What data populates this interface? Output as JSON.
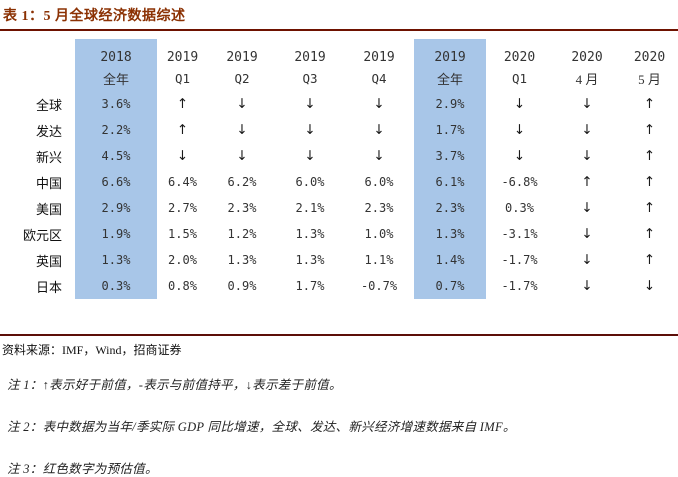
{
  "title": "表 1：5 月全球经济数据综述",
  "colors": {
    "title_text": "#8B3103",
    "rule": "#6E1200",
    "highlight_column": "#A8C6E8",
    "arrow": "#1a1a1a"
  },
  "table": {
    "columns": [
      {
        "year": "2018",
        "period": "全年",
        "highlight": true
      },
      {
        "year": "2019",
        "period": "Q1",
        "highlight": false
      },
      {
        "year": "2019",
        "period": "Q2",
        "highlight": false
      },
      {
        "year": "2019",
        "period": "Q3",
        "highlight": false
      },
      {
        "year": "2019",
        "period": "Q4",
        "highlight": false
      },
      {
        "year": "2019",
        "period": "全年",
        "highlight": true
      },
      {
        "year": "2020",
        "period": "Q1",
        "highlight": false
      },
      {
        "year": "2020",
        "period": "4 月",
        "highlight": false
      },
      {
        "year": "2020",
        "period": "5 月",
        "highlight": false
      }
    ],
    "rows": [
      {
        "label": "全球",
        "values": [
          "3.6%",
          "↑",
          "↓",
          "↓",
          "↓",
          "2.9%",
          "↓",
          "↓",
          "↑"
        ]
      },
      {
        "label": "发达",
        "values": [
          "2.2%",
          "↑",
          "↓",
          "↓",
          "↓",
          "1.7%",
          "↓",
          "↓",
          "↑"
        ]
      },
      {
        "label": "新兴",
        "values": [
          "4.5%",
          "↓",
          "↓",
          "↓",
          "↓",
          "3.7%",
          "↓",
          "↓",
          "↑"
        ]
      },
      {
        "label": "中国",
        "values": [
          "6.6%",
          "6.4%",
          "6.2%",
          "6.0%",
          "6.0%",
          "6.1%",
          "-6.8%",
          "↑",
          "↑"
        ]
      },
      {
        "label": "美国",
        "values": [
          "2.9%",
          "2.7%",
          "2.3%",
          "2.1%",
          "2.3%",
          "2.3%",
          "0.3%",
          "↓",
          "↑"
        ]
      },
      {
        "label": "欧元区",
        "values": [
          "1.9%",
          "1.5%",
          "1.2%",
          "1.3%",
          "1.0%",
          "1.3%",
          "-3.1%",
          "↓",
          "↑"
        ]
      },
      {
        "label": "英国",
        "values": [
          "1.3%",
          "2.0%",
          "1.3%",
          "1.3%",
          "1.1%",
          "1.4%",
          "-1.7%",
          "↓",
          "↑"
        ]
      },
      {
        "label": "日本",
        "values": [
          "0.3%",
          "0.8%",
          "0.9%",
          "1.7%",
          "-0.7%",
          "0.7%",
          "-1.7%",
          "↓",
          "↓"
        ]
      }
    ]
  },
  "source": "资料来源：IMF，Wind，招商证券",
  "notes": [
    "注 1：↑表示好于前值，-表示与前值持平，↓表示差于前值。",
    "注 2：表中数据为当年/季实际 GDP 同比增速，全球、发达、新兴经济增速数据来自 IMF。",
    "注 3：红色数字为预估值。"
  ],
  "chart_data": {
    "type": "table",
    "title": "表 1：5 月全球经济数据综述",
    "columns": [
      "",
      "2018 全年",
      "2019 Q1",
      "2019 Q2",
      "2019 Q3",
      "2019 Q4",
      "2019 全年",
      "2020 Q1",
      "2020 4月",
      "2020 5月"
    ],
    "rows": [
      [
        "全球",
        "3.6%",
        "↑",
        "↓",
        "↓",
        "↓",
        "2.9%",
        "↓",
        "↓",
        "↑"
      ],
      [
        "发达",
        "2.2%",
        "↑",
        "↓",
        "↓",
        "↓",
        "1.7%",
        "↓",
        "↓",
        "↑"
      ],
      [
        "新兴",
        "4.5%",
        "↓",
        "↓",
        "↓",
        "↓",
        "3.7%",
        "↓",
        "↓",
        "↑"
      ],
      [
        "中国",
        "6.6%",
        "6.4%",
        "6.2%",
        "6.0%",
        "6.0%",
        "6.1%",
        "-6.8%",
        "↑",
        "↑"
      ],
      [
        "美国",
        "2.9%",
        "2.7%",
        "2.3%",
        "2.1%",
        "2.3%",
        "2.3%",
        "0.3%",
        "↓",
        "↑"
      ],
      [
        "欧元区",
        "1.9%",
        "1.5%",
        "1.2%",
        "1.3%",
        "1.0%",
        "1.3%",
        "-3.1%",
        "↓",
        "↑"
      ],
      [
        "英国",
        "1.3%",
        "2.0%",
        "1.3%",
        "1.3%",
        "1.1%",
        "1.4%",
        "-1.7%",
        "↓",
        "↑"
      ],
      [
        "日本",
        "0.3%",
        "0.8%",
        "0.9%",
        "1.7%",
        "-0.7%",
        "0.7%",
        "-1.7%",
        "↓",
        "↓"
      ]
    ]
  }
}
